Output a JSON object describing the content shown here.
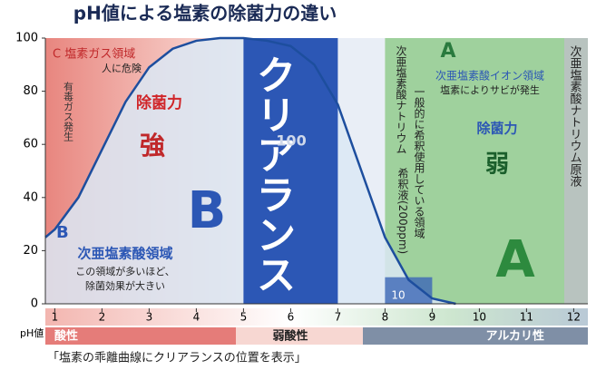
{
  "chart_data": {
    "type": "line",
    "title": "pH値による塩素の除菌力の違い",
    "caption": "「塩素の乖離曲線にクリアランスの位置を表示」",
    "x_label": "pH値",
    "zones": [
      "酸性",
      "弱酸性",
      "アルカリ性"
    ],
    "annotations": [
      "C 塩素ガス領域",
      "人に危険",
      "有毒ガス発生",
      "除菌力",
      "強",
      "B",
      "B",
      "次亜塩素酸領域",
      "この領域が多いほど、",
      "除菌効果が大きい",
      "クリアランス",
      "100",
      "10",
      "次亜塩素酸ナトリウム",
      "一般的に希釈使用している領域",
      "希釈液(200ppm)",
      "A",
      "次亜塩素酸イオン領域",
      "塩素によりサビが発生",
      "除菌力",
      "弱",
      "A",
      "次亜塩素酸ナトリウム原液"
    ],
    "x": [
      0.8,
      1,
      1.5,
      2,
      2.5,
      3,
      3.5,
      4,
      4.5,
      5,
      5.5,
      6,
      6.5,
      7,
      7.5,
      8,
      8.5,
      9,
      9.5
    ],
    "series": [
      {
        "color": "#1d4e9e",
        "values": [
          25,
          28,
          40,
          58,
          76,
          89,
          96,
          99,
          100,
          100,
          99,
          97,
          90,
          75,
          50,
          25,
          9,
          2,
          0
        ]
      }
    ],
    "xlim": [
      0.8,
      12.3
    ],
    "xticks": [
      1,
      2,
      3,
      4,
      5,
      6,
      7,
      8,
      9,
      10,
      11,
      12
    ],
    "ylim": [
      0,
      100
    ],
    "yticks": [
      0,
      20,
      40,
      60,
      80,
      100
    ]
  }
}
